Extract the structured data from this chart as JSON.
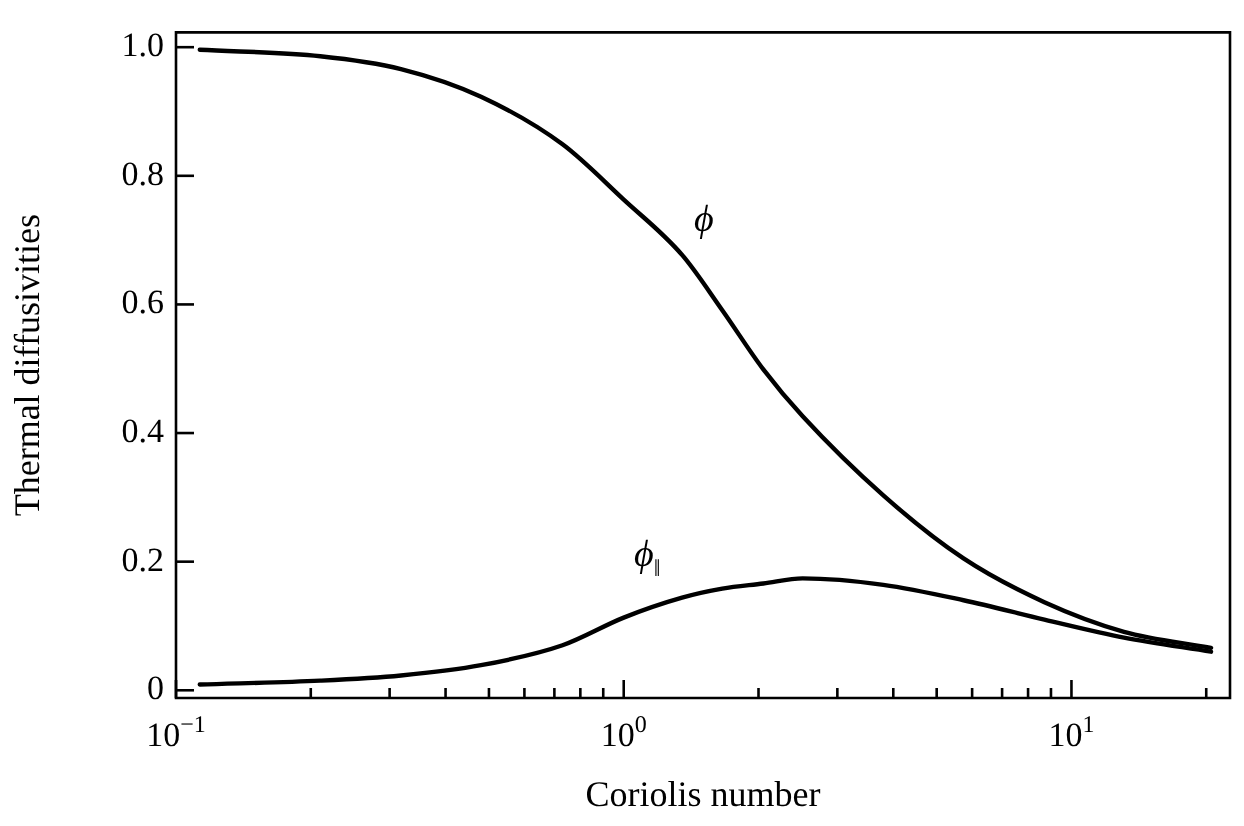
{
  "chart_data": {
    "type": "line",
    "xlabel": "Coriolis number",
    "ylabel": "Thermal diffusivities",
    "log": "x",
    "grid": false,
    "legend": false,
    "marker": "none",
    "line_style": "solid",
    "xlim": [
      0.1,
      22.6
    ],
    "ylim": [
      -0.012,
      1.023
    ],
    "xticks": [
      {
        "value": 0.1,
        "label": "10$^{−1}$"
      },
      {
        "value": 0.2,
        "label": null
      },
      {
        "value": 0.3,
        "label": null
      },
      {
        "value": 0.4,
        "label": null
      },
      {
        "value": 0.5,
        "label": null
      },
      {
        "value": 0.6,
        "label": null
      },
      {
        "value": 0.7,
        "label": null
      },
      {
        "value": 0.8,
        "label": null
      },
      {
        "value": 0.9,
        "label": null
      },
      {
        "value": 1,
        "label": "10$^{0}$"
      },
      {
        "value": 2,
        "label": null
      },
      {
        "value": 3,
        "label": null
      },
      {
        "value": 4,
        "label": null
      },
      {
        "value": 5,
        "label": null
      },
      {
        "value": 6,
        "label": null
      },
      {
        "value": 7,
        "label": null
      },
      {
        "value": 8,
        "label": null
      },
      {
        "value": 9,
        "label": null
      },
      {
        "value": 10,
        "label": "10$^{1}$"
      },
      {
        "value": 20,
        "label": null
      }
    ],
    "yticks": [
      {
        "value": 0,
        "label": "0"
      },
      {
        "value": 0.2,
        "label": "0.2"
      },
      {
        "value": 0.4,
        "label": "0.4"
      },
      {
        "value": 0.6,
        "label": "0.6"
      },
      {
        "value": 0.8,
        "label": "0.8"
      },
      {
        "value": 1,
        "label": "1.0"
      }
    ],
    "x": [
      0.113,
      0.21,
      0.318,
      0.48,
      0.73,
      1.0,
      1.35,
      1.66,
      2.05,
      2.51,
      3.8,
      5.74,
      8.7,
      13.1,
      20.5
    ],
    "series": [
      {
        "name": "ϕ",
        "color": "#000000",
        "values": [
          0.996,
          0.986,
          0.966,
          0.923,
          0.849,
          0.763,
          0.677,
          0.591,
          0.499,
          0.426,
          0.303,
          0.205,
          0.137,
          0.091,
          0.066
        ]
      },
      {
        "name": "ϕ$_{‖}$",
        "color": "#000000",
        "values": [
          0.009,
          0.015,
          0.023,
          0.039,
          0.07,
          0.113,
          0.144,
          0.158,
          0.166,
          0.174,
          0.164,
          0.14,
          0.11,
          0.082,
          0.06
        ]
      }
    ]
  }
}
